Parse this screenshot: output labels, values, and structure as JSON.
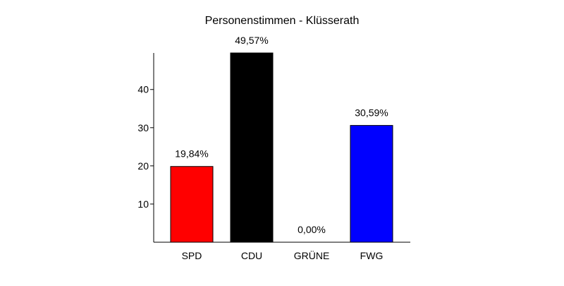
{
  "chart_data": {
    "type": "bar",
    "title": "Personenstimmen - Klüsserath",
    "xlabel": "",
    "ylabel": "",
    "categories": [
      "SPD",
      "CDU",
      "GRÜNE",
      "FWG"
    ],
    "values": [
      19.84,
      49.57,
      0.0,
      30.59
    ],
    "data_labels": [
      "19,84%",
      "49,57%",
      "0,00%",
      "30,59%"
    ],
    "colors": [
      "#ff0000",
      "#000000",
      "#00aa00",
      "#0000ff"
    ],
    "ylim": [
      0,
      49.57
    ],
    "yticks": [
      10,
      20,
      30,
      40
    ],
    "ytick_labels": [
      "10",
      "20",
      "30",
      "40"
    ],
    "grid": false,
    "legend": "none"
  }
}
